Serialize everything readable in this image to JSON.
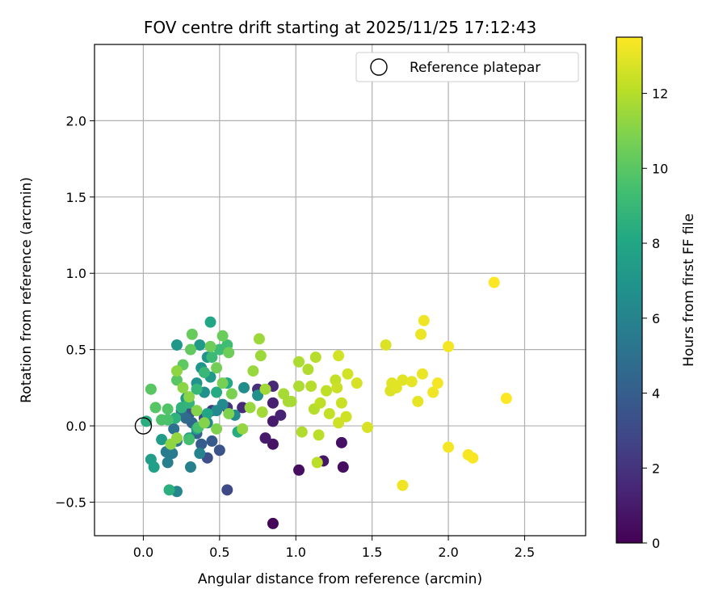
{
  "chart_data": {
    "type": "scatter",
    "title": "FOV centre drift starting at 2025/11/25 17:12:43",
    "xlabel": "Angular distance from reference (arcmin)",
    "ylabel": "Rotation from reference (arcmin)",
    "xlim": [
      -0.32,
      2.9
    ],
    "ylim": [
      -0.72,
      2.5
    ],
    "xticks": [
      0.0,
      0.5,
      1.0,
      1.5,
      2.0,
      2.5
    ],
    "xtick_labels": [
      "0.0",
      "0.5",
      "1.0",
      "1.5",
      "2.0",
      "2.5"
    ],
    "yticks": [
      -0.5,
      0.0,
      0.5,
      1.0,
      1.5,
      2.0
    ],
    "ytick_labels": [
      "−0.5",
      "0.0",
      "0.5",
      "1.0",
      "1.5",
      "2.0"
    ],
    "grid": true,
    "legend": {
      "position": "top-right",
      "label": "Reference platepar",
      "marker": "open-circle"
    },
    "reference": {
      "x": 0.0,
      "y": 0.0
    },
    "colorbar": {
      "label": "Hours from first FF file",
      "range": [
        0,
        13.5
      ],
      "ticks": [
        0,
        2,
        4,
        6,
        8,
        10,
        12
      ],
      "tick_labels": [
        "0",
        "2",
        "4",
        "6",
        "8",
        "10",
        "12"
      ],
      "colormap": "viridis"
    },
    "points": [
      [
        0.85,
        -0.64,
        0.2
      ],
      [
        1.02,
        -0.29,
        0.5
      ],
      [
        1.31,
        -0.27,
        0.5
      ],
      [
        1.3,
        -0.11,
        0.6
      ],
      [
        1.18,
        -0.23,
        0.8
      ],
      [
        0.85,
        -0.12,
        0.7
      ],
      [
        0.8,
        -0.08,
        1.0
      ],
      [
        0.85,
        0.03,
        1.0
      ],
      [
        0.9,
        0.07,
        1.3
      ],
      [
        0.85,
        0.15,
        1.2
      ],
      [
        0.85,
        0.26,
        1.5
      ],
      [
        0.75,
        0.24,
        1.8
      ],
      [
        0.65,
        0.12,
        1.6
      ],
      [
        0.55,
        0.12,
        2.0
      ],
      [
        0.45,
        0.1,
        2.3
      ],
      [
        0.4,
        0.05,
        2.8
      ],
      [
        0.3,
        0.08,
        3.3
      ],
      [
        0.42,
        -0.21,
        3.2
      ],
      [
        0.55,
        -0.42,
        3.0
      ],
      [
        0.5,
        -0.16,
        3.5
      ],
      [
        0.45,
        -0.1,
        3.8
      ],
      [
        0.38,
        -0.12,
        4.0
      ],
      [
        0.35,
        -0.05,
        4.2
      ],
      [
        0.32,
        0.02,
        4.5
      ],
      [
        0.28,
        0.05,
        4.7
      ],
      [
        0.25,
        0.1,
        4.9
      ],
      [
        0.2,
        -0.02,
        5.1
      ],
      [
        0.22,
        -0.1,
        5.3
      ],
      [
        0.19,
        -0.18,
        5.5
      ],
      [
        0.15,
        -0.17,
        5.6
      ],
      [
        0.16,
        -0.24,
        5.8
      ],
      [
        0.31,
        -0.27,
        5.9
      ],
      [
        0.37,
        -0.18,
        6.0
      ],
      [
        0.22,
        -0.43,
        6.1
      ],
      [
        0.42,
        0.02,
        6.2
      ],
      [
        0.48,
        0.1,
        6.3
      ],
      [
        0.52,
        0.14,
        6.4
      ],
      [
        0.6,
        0.07,
        6.5
      ],
      [
        0.66,
        0.25,
        6.6
      ],
      [
        0.75,
        0.2,
        6.7
      ],
      [
        0.4,
        0.22,
        6.7
      ],
      [
        0.35,
        0.28,
        6.8
      ],
      [
        0.38,
        0.38,
        6.9
      ],
      [
        0.42,
        0.45,
        7.0
      ],
      [
        0.22,
        0.53,
        7.1
      ],
      [
        0.37,
        0.53,
        7.2
      ],
      [
        0.44,
        0.32,
        7.2
      ],
      [
        0.28,
        0.18,
        7.3
      ],
      [
        0.12,
        -0.09,
        7.4
      ],
      [
        0.05,
        -0.22,
        7.5
      ],
      [
        0.07,
        -0.27,
        7.6
      ],
      [
        0.3,
        -0.08,
        7.7
      ],
      [
        0.35,
        -0.02,
        7.8
      ],
      [
        0.42,
        0.08,
        7.9
      ],
      [
        0.44,
        0.68,
        8.0
      ],
      [
        0.55,
        0.28,
        8.1
      ],
      [
        0.48,
        0.22,
        8.2
      ],
      [
        0.62,
        -0.04,
        8.3
      ],
      [
        0.02,
        0.03,
        8.4
      ],
      [
        0.17,
        -0.42,
        8.5
      ],
      [
        0.21,
        0.05,
        8.6
      ],
      [
        0.25,
        0.12,
        8.7
      ],
      [
        0.3,
        0.15,
        8.8
      ],
      [
        0.35,
        0.24,
        8.9
      ],
      [
        0.4,
        0.35,
        9.0
      ],
      [
        0.45,
        0.45,
        9.1
      ],
      [
        0.5,
        0.5,
        9.2
      ],
      [
        0.55,
        0.53,
        9.3
      ],
      [
        0.3,
        -0.09,
        9.4
      ],
      [
        0.36,
        -0.01,
        9.5
      ],
      [
        0.16,
        0.04,
        9.6
      ],
      [
        0.12,
        0.04,
        9.7
      ],
      [
        0.16,
        0.11,
        9.8
      ],
      [
        0.08,
        0.12,
        9.9
      ],
      [
        0.05,
        0.24,
        10.0
      ],
      [
        0.22,
        0.3,
        10.0
      ],
      [
        0.26,
        0.4,
        10.1
      ],
      [
        0.31,
        0.5,
        10.2
      ],
      [
        0.32,
        0.6,
        10.3
      ],
      [
        0.52,
        0.59,
        10.4
      ],
      [
        0.56,
        0.48,
        10.5
      ],
      [
        0.44,
        0.52,
        10.5
      ],
      [
        0.48,
        0.38,
        10.6
      ],
      [
        0.52,
        0.28,
        10.7
      ],
      [
        0.58,
        0.21,
        10.8
      ],
      [
        0.56,
        0.08,
        10.9
      ],
      [
        0.48,
        -0.02,
        10.9
      ],
      [
        0.4,
        0.02,
        11.0
      ],
      [
        0.35,
        0.1,
        11.0
      ],
      [
        0.3,
        0.19,
        11.1
      ],
      [
        0.26,
        0.25,
        11.1
      ],
      [
        0.22,
        0.36,
        11.2
      ],
      [
        0.18,
        -0.12,
        11.2
      ],
      [
        0.22,
        -0.08,
        11.3
      ],
      [
        0.65,
        -0.02,
        11.3
      ],
      [
        0.7,
        0.12,
        11.4
      ],
      [
        0.72,
        0.36,
        11.4
      ],
      [
        0.76,
        0.57,
        11.5
      ],
      [
        0.77,
        0.46,
        11.5
      ],
      [
        0.8,
        0.24,
        11.6
      ],
      [
        0.78,
        0.09,
        11.6
      ],
      [
        0.92,
        0.21,
        11.7
      ],
      [
        0.97,
        0.16,
        11.7
      ],
      [
        1.02,
        0.26,
        11.8
      ],
      [
        1.02,
        0.42,
        11.8
      ],
      [
        1.04,
        -0.04,
        11.9
      ],
      [
        1.08,
        0.37,
        11.9
      ],
      [
        1.1,
        0.26,
        12.0
      ],
      [
        1.12,
        0.11,
        12.0
      ],
      [
        1.15,
        -0.06,
        12.1
      ],
      [
        1.14,
        -0.24,
        12.1
      ],
      [
        1.16,
        0.15,
        12.2
      ],
      [
        1.2,
        0.23,
        12.2
      ],
      [
        1.22,
        0.08,
        12.3
      ],
      [
        1.26,
        0.3,
        12.3
      ],
      [
        1.27,
        0.25,
        12.4
      ],
      [
        1.3,
        0.15,
        12.4
      ],
      [
        1.28,
        0.02,
        12.5
      ],
      [
        1.33,
        0.06,
        12.5
      ],
      [
        1.34,
        0.34,
        12.6
      ],
      [
        1.28,
        0.46,
        12.6
      ],
      [
        1.4,
        0.28,
        12.7
      ],
      [
        1.47,
        -0.01,
        12.7
      ],
      [
        1.59,
        0.53,
        12.8
      ],
      [
        1.62,
        0.23,
        12.8
      ],
      [
        1.66,
        0.25,
        12.9
      ],
      [
        1.7,
        0.3,
        12.9
      ],
      [
        1.76,
        0.29,
        13.0
      ],
      [
        1.8,
        0.16,
        13.0
      ],
      [
        1.83,
        0.34,
        13.1
      ],
      [
        1.82,
        0.6,
        13.1
      ],
      [
        1.84,
        0.69,
        13.2
      ],
      [
        1.7,
        -0.39,
        13.2
      ],
      [
        1.9,
        0.22,
        13.2
      ],
      [
        1.93,
        0.28,
        13.3
      ],
      [
        2.0,
        0.52,
        13.3
      ],
      [
        2.0,
        -0.14,
        13.3
      ],
      [
        2.13,
        -0.19,
        13.4
      ],
      [
        2.16,
        -0.21,
        13.4
      ],
      [
        2.3,
        0.94,
        13.5
      ],
      [
        2.38,
        0.18,
        13.5
      ],
      [
        1.63,
        0.28,
        12.9
      ],
      [
        1.13,
        0.45,
        12.0
      ],
      [
        0.95,
        0.16,
        11.7
      ]
    ]
  }
}
